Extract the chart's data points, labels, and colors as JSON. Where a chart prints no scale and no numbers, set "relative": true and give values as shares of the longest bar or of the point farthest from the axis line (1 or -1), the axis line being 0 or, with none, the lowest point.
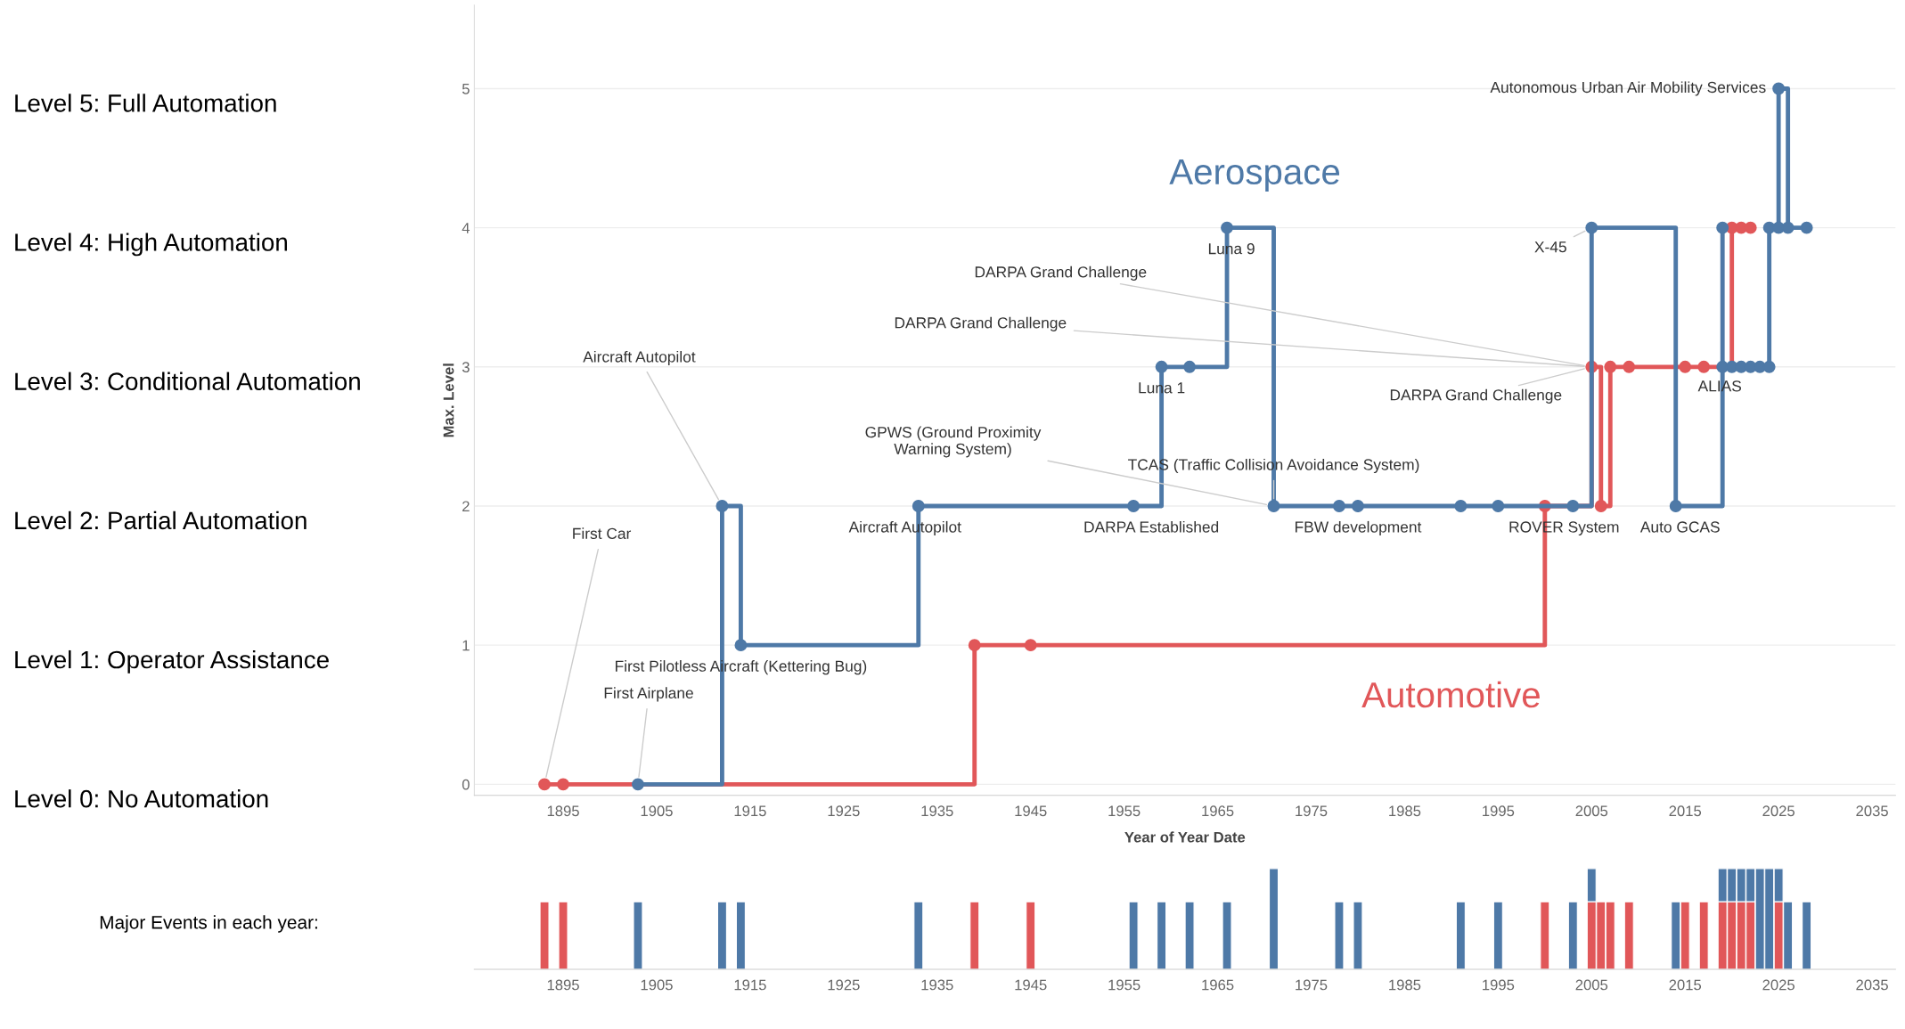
{
  "chart_data": [
    {
      "type": "step",
      "xlabel": "Year of Year Date",
      "ylabel": "Max. Level",
      "xlim": [
        1885.5,
        2037.5
      ],
      "xticks": [
        1895,
        1905,
        1915,
        1925,
        1935,
        1945,
        1955,
        1965,
        1975,
        1985,
        1995,
        2005,
        2015,
        2025,
        2035
      ],
      "ylim": [
        -0.08,
        5.6
      ],
      "yticks": [
        0,
        1,
        2,
        3,
        4,
        5
      ],
      "grid": "y",
      "marker": "circle",
      "line_style": "solid",
      "legend": false,
      "series": [
        {
          "name": "Aerospace",
          "color": "#4e79a7",
          "x": [
            1903,
            1912,
            1914,
            1933,
            1956,
            1959,
            1962,
            1966,
            1971,
            1978,
            1980,
            1991,
            1995,
            2003,
            2005,
            2014,
            2019,
            2019,
            2020,
            2021,
            2022,
            2023,
            2024,
            2024,
            2025,
            2025,
            2026,
            2028
          ],
          "values": [
            0,
            2,
            1,
            2,
            2,
            3,
            3,
            4,
            2,
            2,
            2,
            2,
            2,
            2,
            4,
            2,
            4,
            3,
            3,
            3,
            3,
            3,
            3,
            4,
            4,
            5,
            4,
            4
          ]
        },
        {
          "name": "Automotive",
          "color": "#e15759",
          "x": [
            1893,
            1895,
            1939,
            1945,
            2000,
            2005,
            2006,
            2007,
            2009,
            2015,
            2017,
            2020,
            2021,
            2022
          ],
          "values": [
            0,
            0,
            1,
            1,
            2,
            3,
            2,
            3,
            3,
            3,
            3,
            4,
            4,
            4
          ]
        }
      ],
      "annotations": [
        "Level 5: Full Automation",
        "Level 4: High Automation",
        "Level 3: Conditional Automation",
        "Level 2: Partial Automation",
        "Level 1: Operator Assistance",
        "Level 0: No Automation",
        {
          "text": "First Car",
          "x": 1893,
          "y": 0
        },
        {
          "text": "First Airplane",
          "x": 1903,
          "y": 0
        },
        {
          "text": "First Pilotless Aircraft (Kettering Bug)",
          "x": 1914,
          "y": 1
        },
        {
          "text": "Aircraft Autopilot",
          "x": 1912,
          "y": 2
        },
        {
          "text": "Aircraft Autopilot",
          "x": 1933,
          "y": 2
        },
        {
          "text": "DARPA Established",
          "x": 1956,
          "y": 2
        },
        {
          "text": "Luna 1",
          "x": 1959,
          "y": 3
        },
        {
          "text": "Luna 9",
          "x": 1966,
          "y": 4
        },
        {
          "text": "GPWS (Ground Proximity\nWarning System)",
          "x": 1971,
          "y": 2
        },
        {
          "text": "TCAS (Traffic Collision Avoidance System)",
          "x": 1971,
          "y": 2
        },
        {
          "text": "FBW development",
          "x": 1980,
          "y": 2
        },
        {
          "text": "ROVER System",
          "x": 2003,
          "y": 2
        },
        {
          "text": "Auto GCAS",
          "x": 2014,
          "y": 2
        },
        {
          "text": "DARPA Grand Challenge",
          "x": 2005,
          "y": 3
        },
        {
          "text": "DARPA Grand Challenge",
          "x": 2005,
          "y": 3
        },
        {
          "text": "DARPA Grand Challenge",
          "x": 2005,
          "y": 3
        },
        {
          "text": "X-45",
          "x": 2005,
          "y": 4
        },
        {
          "text": "ALIAS",
          "x": 2019,
          "y": 3
        },
        {
          "text": "Autonomous Urban Air Mobility Services",
          "x": 2025,
          "y": 5
        }
      ]
    },
    {
      "type": "bar",
      "stacked": true,
      "relative": true,
      "tick_labels": "x",
      "xlim": [
        1885.5,
        2037.5
      ],
      "xticks": [
        1895,
        1905,
        1915,
        1925,
        1935,
        1945,
        1955,
        1965,
        1975,
        1985,
        1995,
        2005,
        2015,
        2025,
        2035
      ],
      "x": [
        1893,
        1895,
        1903,
        1912,
        1914,
        1933,
        1939,
        1945,
        1956,
        1959,
        1962,
        1966,
        1971,
        1978,
        1980,
        1991,
        1995,
        2000,
        2003,
        2005,
        2006,
        2007,
        2009,
        2014,
        2015,
        2017,
        2019,
        2020,
        2021,
        2022,
        2023,
        2024,
        2025,
        2026,
        2028
      ],
      "series": [
        {
          "color": "#e15759",
          "values": [
            0.67,
            0.67,
            null,
            null,
            null,
            null,
            0.67,
            0.67,
            null,
            null,
            null,
            null,
            null,
            null,
            null,
            null,
            null,
            0.67,
            null,
            0.67,
            0.67,
            0.67,
            0.67,
            null,
            0.67,
            0.67,
            0.67,
            0.67,
            0.67,
            0.67,
            null,
            null,
            0.67,
            null,
            null
          ]
        },
        {
          "color": "#4e79a7",
          "values": [
            null,
            null,
            0.67,
            0.67,
            0.67,
            0.67,
            null,
            null,
            0.67,
            0.67,
            0.67,
            0.67,
            1,
            0.67,
            0.67,
            0.67,
            0.67,
            null,
            0.67,
            0.33,
            null,
            null,
            null,
            0.67,
            null,
            null,
            0.33,
            0.33,
            0.33,
            0.33,
            1,
            1,
            0.33,
            0.67,
            0.67
          ]
        }
      ],
      "annotations": [
        "Major Events in each year:"
      ]
    }
  ]
}
